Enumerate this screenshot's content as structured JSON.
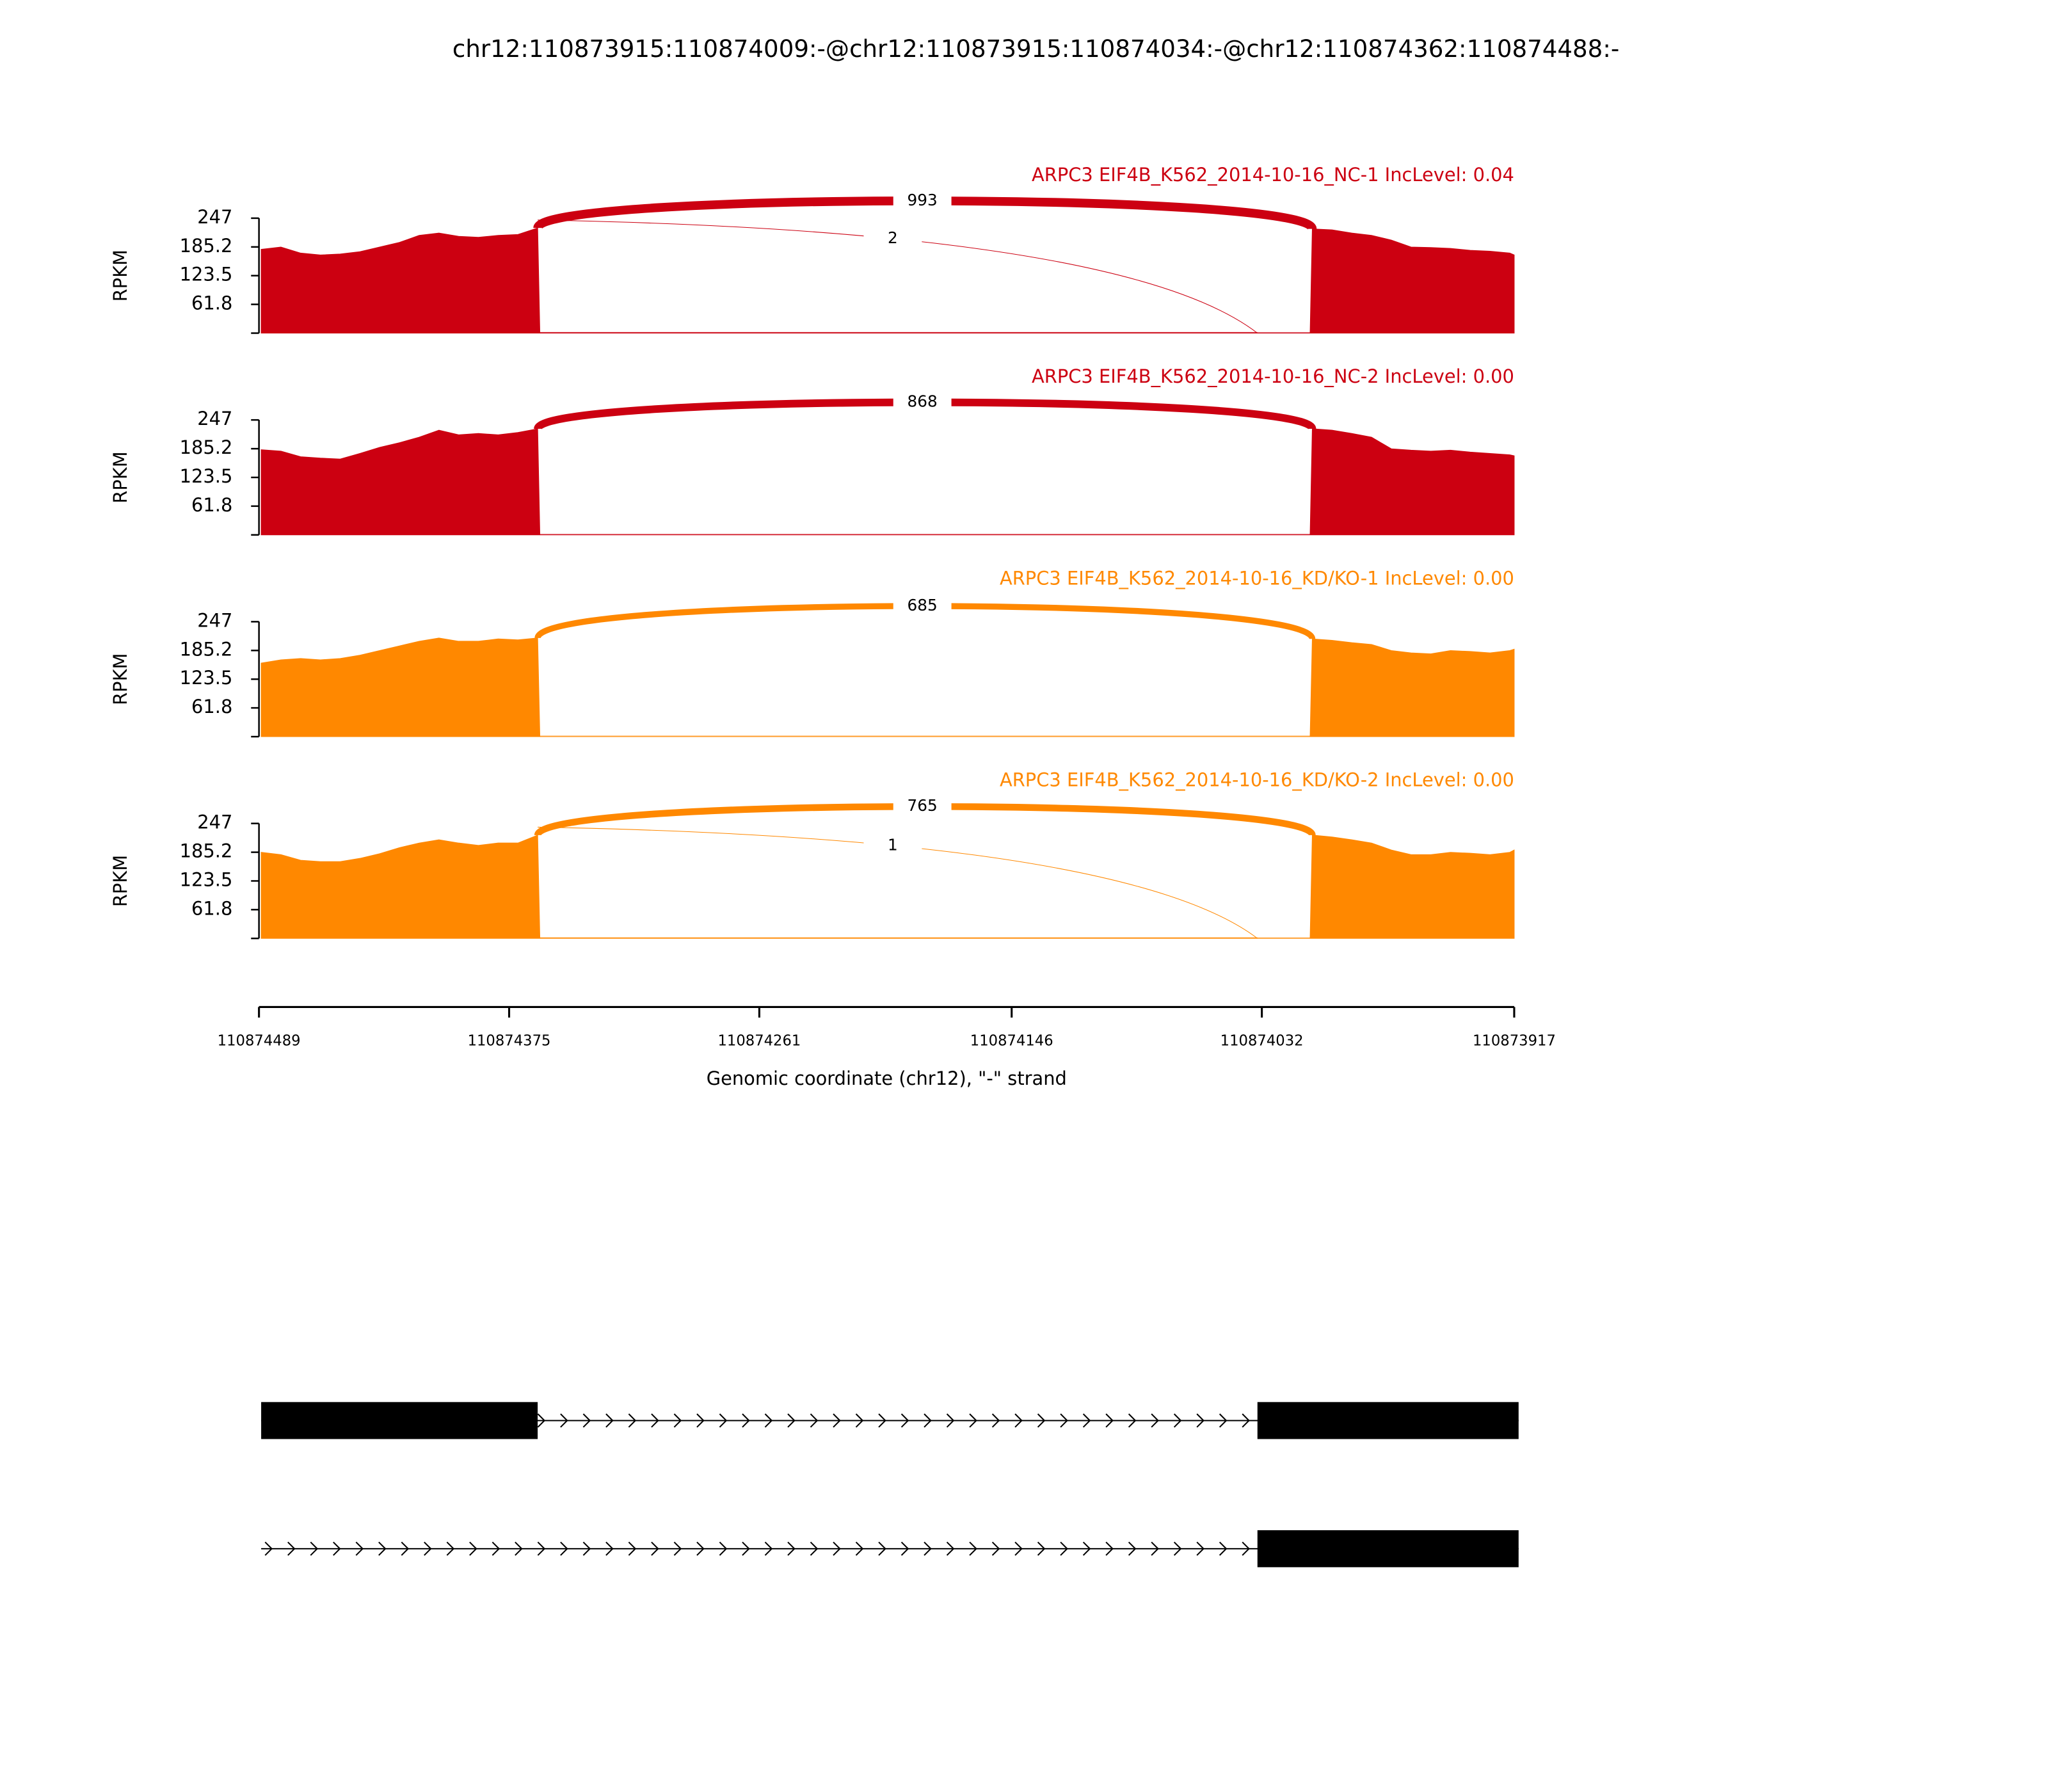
{
  "title": "chr12:110873915:110874009:-@chr12:110873915:110874034:-@chr12:110874362:110874488:-",
  "chart_data": [
    {
      "type": "sashimi",
      "title": "ARPC3 EIF4B_K562_2014-10-16_NC-1 IncLevel: 0.04",
      "color": "#cc0011",
      "ylabel": "RPKM",
      "ylim": [
        0,
        247
      ],
      "yticks": [
        61.8,
        123.5,
        185.2,
        247
      ],
      "x": [
        110874488,
        110874479,
        110874470,
        110874461,
        110874452,
        110874443,
        110874434,
        110874425,
        110874416,
        110874407,
        110874398,
        110874389,
        110874380,
        110874371,
        110874362,
        110874361,
        110874010,
        110874009,
        110874000,
        110873991,
        110873982,
        110873973,
        110873964,
        110873955,
        110873946,
        110873937,
        110873928,
        110873919,
        110873917
      ],
      "values": [
        180,
        185,
        172,
        168,
        170,
        175,
        185,
        195,
        210,
        215,
        208,
        206,
        210,
        212,
        226,
        0,
        0,
        224,
        222,
        215,
        210,
        200,
        185,
        184,
        182,
        178,
        176,
        172,
        168
      ],
      "junctions": [
        {
          "count": 993,
          "start": 110874362,
          "end": 110874009
        },
        {
          "count": 2,
          "start": 110874362,
          "end": 110874034
        }
      ]
    },
    {
      "type": "sashimi",
      "title": "ARPC3 EIF4B_K562_2014-10-16_NC-2 IncLevel: 0.00",
      "color": "#cc0011",
      "ylabel": "RPKM",
      "ylim": [
        0,
        247
      ],
      "yticks": [
        61.8,
        123.5,
        185.2,
        247
      ],
      "x": [
        110874488,
        110874479,
        110874470,
        110874461,
        110874452,
        110874443,
        110874434,
        110874425,
        110874416,
        110874407,
        110874398,
        110874389,
        110874380,
        110874371,
        110874362,
        110874361,
        110874010,
        110874009,
        110874000,
        110873991,
        110873982,
        110873973,
        110873964,
        110873955,
        110873946,
        110873937,
        110873928,
        110873919,
        110873917
      ],
      "values": [
        183,
        180,
        168,
        165,
        163,
        175,
        188,
        198,
        210,
        225,
        215,
        218,
        215,
        220,
        228,
        0,
        0,
        228,
        225,
        218,
        210,
        185,
        182,
        180,
        182,
        178,
        175,
        172,
        170
      ],
      "junctions": [
        {
          "count": 868,
          "start": 110874362,
          "end": 110874009
        }
      ]
    },
    {
      "type": "sashimi",
      "title": "ARPC3 EIF4B_K562_2014-10-16_KD/KO-1 IncLevel: 0.00",
      "color": "#ff8800",
      "ylabel": "RPKM",
      "ylim": [
        0,
        247
      ],
      "yticks": [
        61.8,
        123.5,
        185.2,
        247
      ],
      "x": [
        110874488,
        110874479,
        110874470,
        110874461,
        110874452,
        110874443,
        110874434,
        110874425,
        110874416,
        110874407,
        110874398,
        110874389,
        110874380,
        110874371,
        110874362,
        110874361,
        110874010,
        110874009,
        110874000,
        110873991,
        110873982,
        110873973,
        110873964,
        110873955,
        110873946,
        110873937,
        110873928,
        110873919,
        110873917
      ],
      "values": [
        158,
        165,
        168,
        165,
        168,
        175,
        185,
        195,
        205,
        212,
        205,
        205,
        210,
        208,
        212,
        0,
        0,
        210,
        207,
        202,
        198,
        185,
        180,
        178,
        185,
        183,
        180,
        185,
        188
      ],
      "junctions": [
        {
          "count": 685,
          "start": 110874362,
          "end": 110874009
        }
      ]
    },
    {
      "type": "sashimi",
      "title": "ARPC3 EIF4B_K562_2014-10-16_KD/KO-2 IncLevel: 0.00",
      "color": "#ff8800",
      "ylabel": "RPKM",
      "ylim": [
        0,
        247
      ],
      "yticks": [
        61.8,
        123.5,
        185.2,
        247
      ],
      "x": [
        110874488,
        110874479,
        110874470,
        110874461,
        110874452,
        110874443,
        110874434,
        110874425,
        110874416,
        110874407,
        110874398,
        110874389,
        110874380,
        110874371,
        110874362,
        110874361,
        110874010,
        110874009,
        110874000,
        110873991,
        110873982,
        110873973,
        110873964,
        110873955,
        110873946,
        110873937,
        110873928,
        110873919,
        110873917
      ],
      "values": [
        185,
        180,
        168,
        165,
        165,
        172,
        182,
        195,
        205,
        212,
        205,
        200,
        205,
        205,
        222,
        0,
        0,
        222,
        218,
        212,
        205,
        190,
        180,
        180,
        185,
        183,
        180,
        185,
        190
      ],
      "junctions": [
        {
          "count": 765,
          "start": 110874362,
          "end": 110874009
        },
        {
          "count": 1,
          "start": 110874362,
          "end": 110874034
        }
      ]
    }
  ],
  "xaxis": {
    "label": "Genomic coordinate (chr12), \"-\" strand",
    "xlim": [
      110874489,
      110873917
    ],
    "xticks": [
      110874489,
      110874375,
      110874261,
      110874146,
      110874032,
      110873917
    ]
  },
  "gene_model": {
    "transcripts": [
      {
        "start": 110874488,
        "end": 110873915,
        "exons": [
          [
            110874488,
            110874362
          ],
          [
            110874034,
            110873915
          ]
        ]
      },
      {
        "start": 110874488,
        "end": 110873915,
        "exons": [
          [
            110874034,
            110873915
          ]
        ]
      }
    ]
  }
}
